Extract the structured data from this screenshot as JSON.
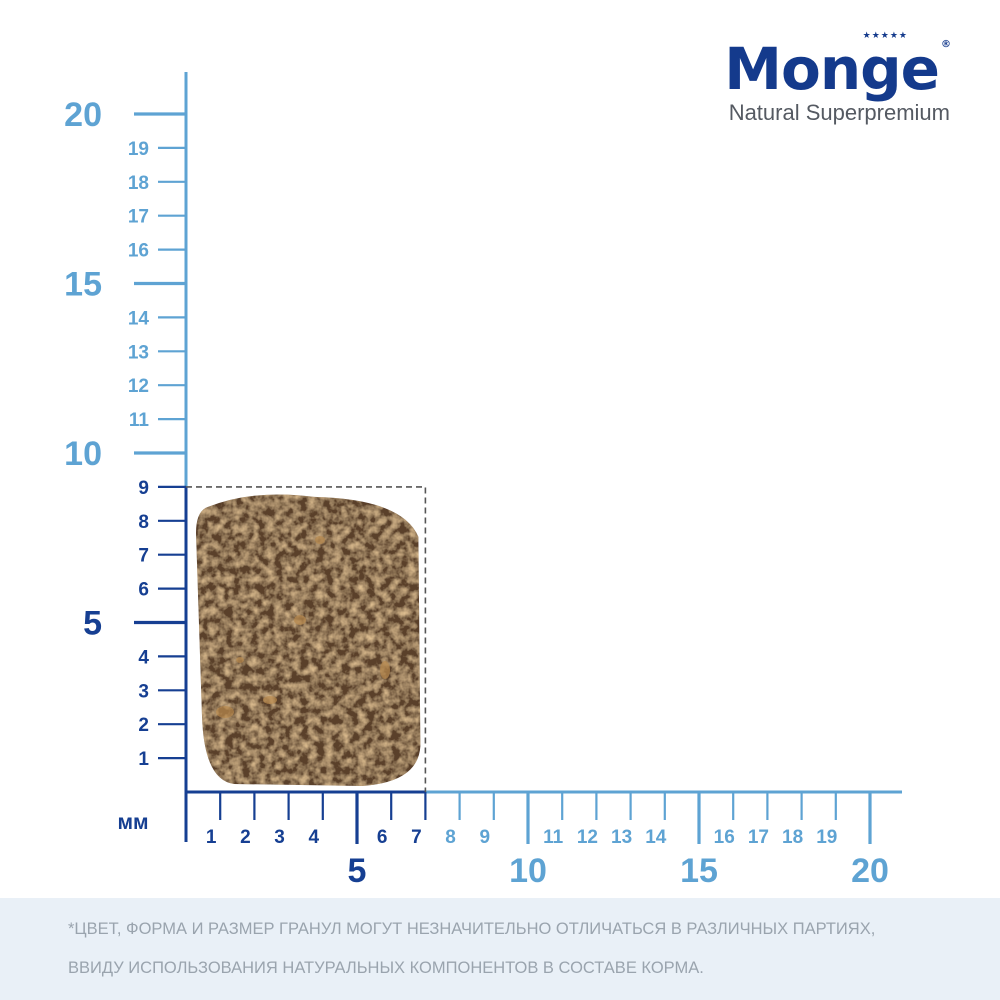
{
  "brand": {
    "name": "Monge",
    "tagline": "Natural Superpremium",
    "mark": "★★★★★"
  },
  "colors": {
    "dark_axis": "#163f92",
    "light_axis": "#5ea3d3",
    "kibble": "#5a3f2c",
    "footer_bg": "#e9f0f7"
  },
  "ruler": {
    "unit_label": "мм",
    "x_ticks": [
      "1",
      "2",
      "3",
      "4",
      "5",
      "6",
      "7",
      "8",
      "9",
      "10",
      "11",
      "12",
      "13",
      "14",
      "15",
      "16",
      "17",
      "18",
      "19",
      "20"
    ],
    "y_ticks": [
      "1",
      "2",
      "3",
      "4",
      "5",
      "6",
      "7",
      "8",
      "9",
      "10",
      "11",
      "12",
      "13",
      "14",
      "15",
      "16",
      "17",
      "18",
      "19",
      "20"
    ],
    "highlight_range_mm": {
      "width": 7,
      "height": 9
    }
  },
  "disclaimer": {
    "line1": "*ЦВЕТ, ФОРМА И РАЗМЕР ГРАНУЛ МОГУТ НЕЗНАЧИТЕЛЬНО ОТЛИЧАТЬСЯ В РАЗЛИЧНЫХ ПАРТИЯХ,",
    "line2": "ВВИДУ ИСПОЛЬЗОВАНИЯ НАТУРАЛЬНЫХ КОМПОНЕНТОВ В СОСТАВЕ КОРМА."
  }
}
